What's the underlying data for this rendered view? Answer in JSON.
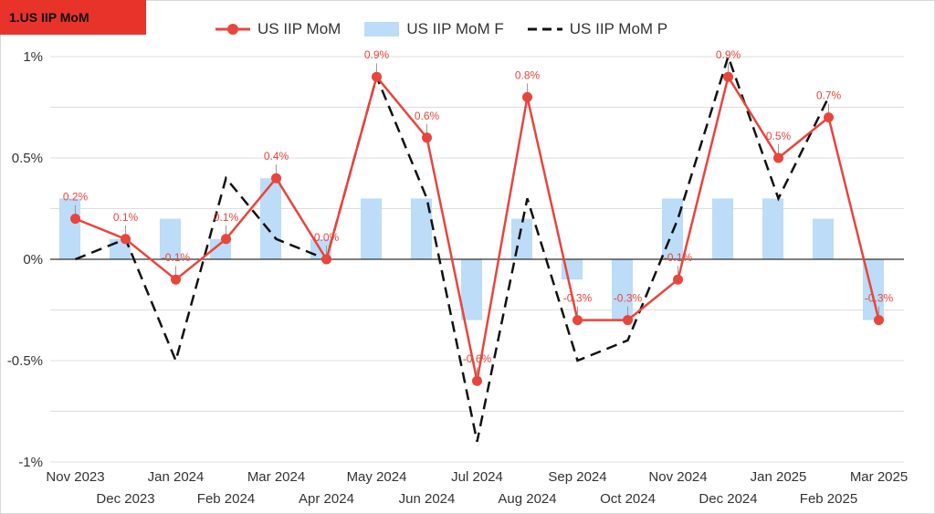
{
  "header": {
    "title": "1.US IIP MoM"
  },
  "colors": {
    "line": "#e8453c",
    "bar": "#bcdcf7",
    "dashed": "#111111",
    "title_bg": "#e8332a"
  },
  "chart_data": {
    "type": "line",
    "categories": [
      "Nov 2023",
      "Dec 2023",
      "Jan 2024",
      "Feb 2024",
      "Mar 2024",
      "Apr 2024",
      "May 2024",
      "Jun 2024",
      "Jul 2024",
      "Aug 2024",
      "Sep 2024",
      "Oct 2024",
      "Nov 2024",
      "Dec 2024",
      "Jan 2025",
      "Feb 2025",
      "Mar 2025"
    ],
    "series": [
      {
        "name": "US IIP MoM",
        "kind": "line",
        "values": [
          0.2,
          0.1,
          -0.1,
          0.1,
          0.4,
          0.0,
          0.9,
          0.6,
          -0.6,
          0.8,
          -0.3,
          -0.3,
          -0.1,
          0.9,
          0.5,
          0.7,
          -0.3
        ],
        "labels": [
          "0.2%",
          "0.1%",
          "-0.1%",
          "0.1%",
          "0.4%",
          "0.0%",
          "0.9%",
          "0.6%",
          "-0.6%",
          "0.8%",
          "-0.3%",
          "-0.3%",
          "-0.1%",
          "0.9%",
          "0.5%",
          "0.7%",
          "-0.3%"
        ]
      },
      {
        "name": "US IIP MoM F",
        "kind": "bar",
        "values": [
          0.3,
          0.1,
          0.2,
          0.1,
          0.4,
          0.1,
          0.3,
          0.3,
          -0.3,
          0.2,
          -0.1,
          -0.3,
          0.3,
          0.3,
          0.3,
          0.2,
          -0.3
        ]
      },
      {
        "name": "US IIP MoM P",
        "kind": "dashed-line",
        "values": [
          0.0,
          0.1,
          -0.5,
          0.4,
          0.1,
          0.0,
          0.9,
          0.3,
          -0.9,
          0.3,
          -0.5,
          -0.4,
          0.2,
          1.0,
          0.3,
          0.8,
          null
        ]
      }
    ],
    "yticks": [
      {
        "value": 1,
        "label": "1%"
      },
      {
        "value": 0.5,
        "label": "0.5%"
      },
      {
        "value": 0,
        "label": "0%"
      },
      {
        "value": -0.5,
        "label": "-0.5%"
      },
      {
        "value": -1,
        "label": "-1%"
      }
    ],
    "ylim": [
      -1,
      1
    ],
    "grid": true,
    "legend_position": "top-center"
  }
}
